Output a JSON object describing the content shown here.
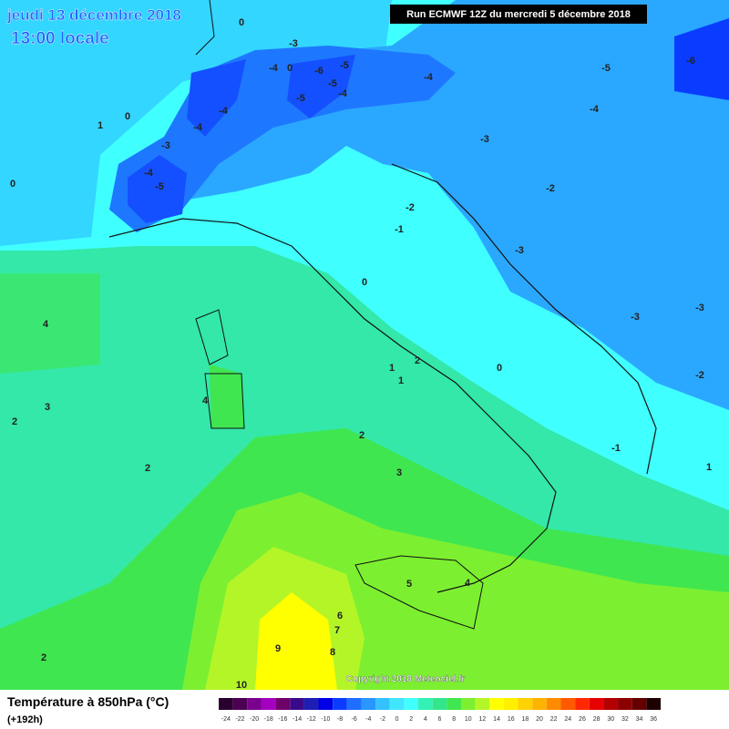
{
  "header": {
    "title": "jeudi 13 décembre 2018",
    "time": "13:00 locale",
    "run": "Run ECMWF 12Z du mercredi 5 décembre 2018"
  },
  "map_labels": [
    "0",
    "-3",
    "-4",
    "0",
    "-6",
    "-5",
    "-5",
    "-5",
    "-4",
    "-4",
    "-5",
    "-6",
    "-4",
    "-3",
    "-4",
    "-4",
    "-3",
    "0",
    "1",
    "0",
    "-4",
    "-5",
    "-2",
    "-1",
    "-2",
    "-3",
    "-3",
    "-3",
    "-2",
    "0",
    "0",
    "2",
    "1",
    "1",
    "-1",
    "1",
    "4",
    "3",
    "2",
    "4",
    "2",
    "2",
    "3",
    "5",
    "4",
    "6",
    "7",
    "8",
    "9",
    "10",
    "2"
  ],
  "copyright": "Copyright 2018 Meteociel.fr",
  "footer": {
    "title": "Température à 850hPa (°C)",
    "subtitle": "(+192h)"
  },
  "colorbar": {
    "labels": [
      -24,
      -22,
      -20,
      -18,
      -16,
      -14,
      -12,
      -10,
      -8,
      -6,
      -4,
      -2,
      0,
      2,
      4,
      6,
      8,
      10,
      12,
      14,
      16,
      18,
      20,
      22,
      24,
      26,
      28,
      30,
      32,
      34,
      36
    ],
    "colors": [
      "#2a0030",
      "#4b0052",
      "#7a0090",
      "#a400c0",
      "#70006a",
      "#3a0a8a",
      "#1e1eb4",
      "#0000e6",
      "#0a3cff",
      "#1e6eff",
      "#2a96ff",
      "#33c2ff",
      "#40e6ff",
      "#40ffff",
      "#33f0b4",
      "#33e68c",
      "#40e650",
      "#7cf030",
      "#b4f528",
      "#ffff00",
      "#fff000",
      "#ffd200",
      "#ffb400",
      "#ff8c00",
      "#ff5a00",
      "#ff2800",
      "#e60000",
      "#b40000",
      "#8c0000",
      "#640000",
      "#1e0000"
    ]
  }
}
